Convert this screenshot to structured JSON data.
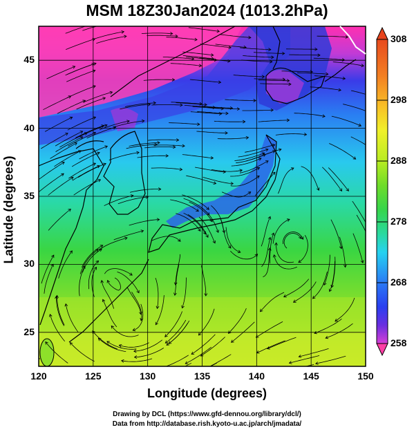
{
  "title": "MSM 18Z30Jan2024 (1013.2hPa)",
  "xlabel": "Longitude (degrees)",
  "ylabel": "Latitude  (degrees)",
  "credits": {
    "line1": "Drawing by DCL (https://www.gfd-dennou.org/library/dcl/)",
    "line2": "Data from http://database.rish.kyoto-u.ac.jp/arch/jmadata/"
  },
  "x_axis": {
    "ticks": [
      "120",
      "125",
      "130",
      "135",
      "140",
      "145",
      "150"
    ],
    "range": [
      120,
      150
    ]
  },
  "y_axis": {
    "ticks": [
      "25",
      "30",
      "35",
      "40",
      "45"
    ],
    "range": [
      22.5,
      47.5
    ]
  },
  "colorbar": {
    "ticks": [
      "308",
      "298",
      "288",
      "278",
      "268",
      "258"
    ],
    "min": 258,
    "max": 308,
    "colors": [
      "#ff2aa6",
      "#d63fd6",
      "#6a2ee0",
      "#2a3ff0",
      "#2a7af5",
      "#26d2f0",
      "#2ad9a0",
      "#36d54b",
      "#6fdc2a",
      "#b8ec22",
      "#f0f02a",
      "#f8c027",
      "#f37f22",
      "#e84a1e"
    ]
  }
}
